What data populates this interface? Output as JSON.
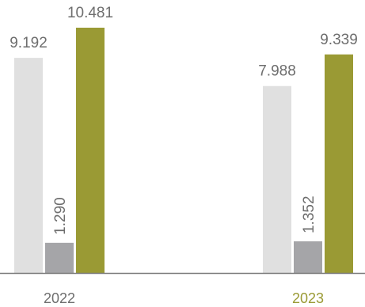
{
  "chart_data": {
    "type": "bar",
    "categories": [
      "2022",
      "2023"
    ],
    "series": [
      {
        "values": [
          9192,
          7988
        ],
        "labels": [
          "9.192",
          "7.988"
        ],
        "color": "#e0e0e0",
        "label_orientation": "horizontal"
      },
      {
        "values": [
          1290,
          1352
        ],
        "labels": [
          "1.290",
          "1.352"
        ],
        "color": "#a5a5a8",
        "label_orientation": "vertical"
      },
      {
        "values": [
          10481,
          9339
        ],
        "labels": [
          "10.481",
          "9.339"
        ],
        "color": "#9a9a34",
        "label_orientation": "horizontal"
      }
    ],
    "category_label_colors": [
      "#6e6e6e",
      "#9a9a34"
    ],
    "axis_line_color": "#7a7a7a",
    "value_label_color": "#6e6e6e",
    "ylim": [
      0,
      10481
    ],
    "grid": false,
    "legend": "none"
  }
}
